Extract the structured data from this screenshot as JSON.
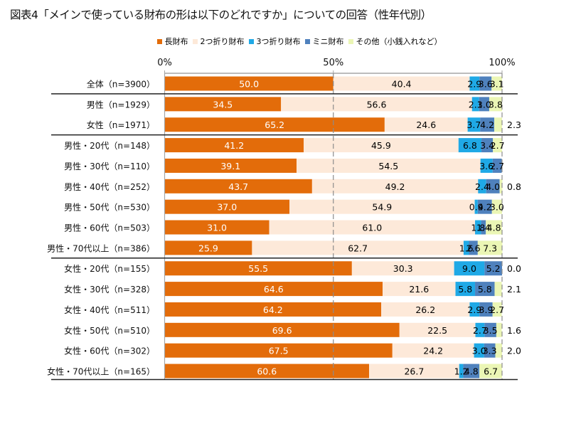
{
  "chart_data": {
    "type": "bar",
    "orientation": "horizontal",
    "stacked": true,
    "normalized_percent": true,
    "title": "図表4「メインで使っている財布の形は以下のどれですか」についての回答（性年代別）",
    "xlabel": "",
    "ylabel": "",
    "xlim": [
      0,
      100
    ],
    "x_ticks": [
      "0%",
      "50%",
      "100%"
    ],
    "x_tick_values": [
      0,
      50,
      100
    ],
    "grid": "dashed vertical at 50% and 100%",
    "legend_position": "top",
    "categories": [
      "全体（n=3900）",
      "男性（n=1929）",
      "女性（n=1971）",
      "男性・20代（n=148）",
      "男性・30代（n=110）",
      "男性・40代（n=252）",
      "男性・50代（n=530）",
      "男性・60代（n=503）",
      "男性・70代以上（n=386）",
      "女性・20代（n=155）",
      "女性・30代（n=328）",
      "女性・40代（n=511）",
      "女性・50代（n=510）",
      "女性・60代（n=302）",
      "女性・70代以上（n=165）"
    ],
    "group_separators_after": [
      0,
      2,
      8
    ],
    "series": [
      {
        "name": "長財布",
        "color": "#E36C0A",
        "label_color": "#FFFFFF",
        "values": [
          50.0,
          34.5,
          65.2,
          41.2,
          39.1,
          43.7,
          37.0,
          31.0,
          25.9,
          55.5,
          64.6,
          64.2,
          69.6,
          67.5,
          60.6
        ]
      },
      {
        "name": "2つ折り財布",
        "color": "#FDE9D9",
        "label_color": "#000000",
        "values": [
          40.4,
          56.6,
          24.6,
          45.9,
          54.5,
          49.2,
          54.9,
          61.0,
          62.7,
          30.3,
          21.6,
          26.2,
          22.5,
          24.2,
          26.7
        ]
      },
      {
        "name": "3つ折り財布",
        "color": "#1FA9E6",
        "label_color": "#000000",
        "values": [
          2.9,
          2.1,
          3.7,
          6.8,
          3.6,
          2.4,
          0.9,
          1.8,
          1.6,
          9.0,
          5.8,
          2.9,
          2.7,
          3.0,
          1.2
        ]
      },
      {
        "name": "ミニ財布",
        "color": "#4F81BD",
        "label_color": "#000000",
        "values": [
          3.6,
          3.0,
          4.2,
          3.4,
          2.7,
          4.0,
          4.2,
          1.4,
          2.6,
          5.2,
          5.8,
          3.9,
          3.5,
          3.3,
          4.8
        ]
      },
      {
        "name": "その他（小銭入れなど）",
        "color": "#EBF6B5",
        "label_color": "#000000",
        "values": [
          3.1,
          3.8,
          2.3,
          2.7,
          null,
          0.8,
          3.0,
          4.8,
          7.3,
          0.0,
          2.1,
          2.7,
          1.6,
          2.0,
          6.7
        ]
      }
    ]
  }
}
